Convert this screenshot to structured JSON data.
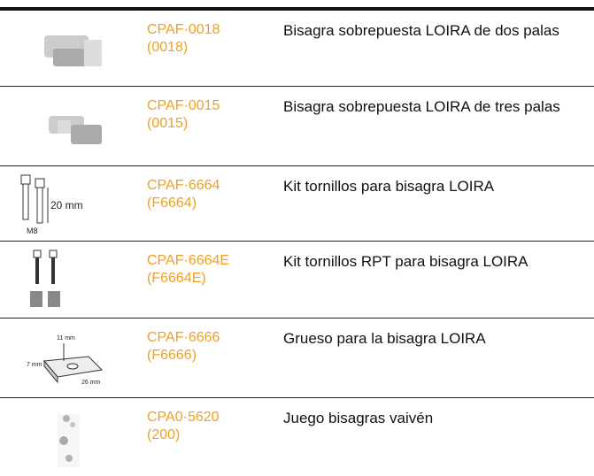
{
  "rows": [
    {
      "code": "CPAF·0018",
      "ref": "(0018)",
      "description": "Bisagra sobrepuesta LOIRA de dos palas"
    },
    {
      "code": "CPAF·0015",
      "ref": "(0015)",
      "description": "Bisagra sobrepuesta LOIRA de tres palas"
    },
    {
      "code": "CPAF·6664",
      "ref": "(F6664)",
      "description": "Kit tornillos para bisagra LOIRA",
      "image_labels": [
        "20 mm",
        "M8"
      ]
    },
    {
      "code": "CPAF·6664E",
      "ref": "(F6664E)",
      "description": "Kit tornillos RPT para bisagra LOIRA"
    },
    {
      "code": "CPAF·6666",
      "ref": "(F6666)",
      "description": "Grueso para la bisagra LOIRA",
      "image_labels": [
        "11 mm",
        "7 mm",
        "26 mm"
      ]
    },
    {
      "code": "CPA0·5620",
      "ref": "(200)",
      "description": "Juego bisagras vaivén"
    }
  ]
}
